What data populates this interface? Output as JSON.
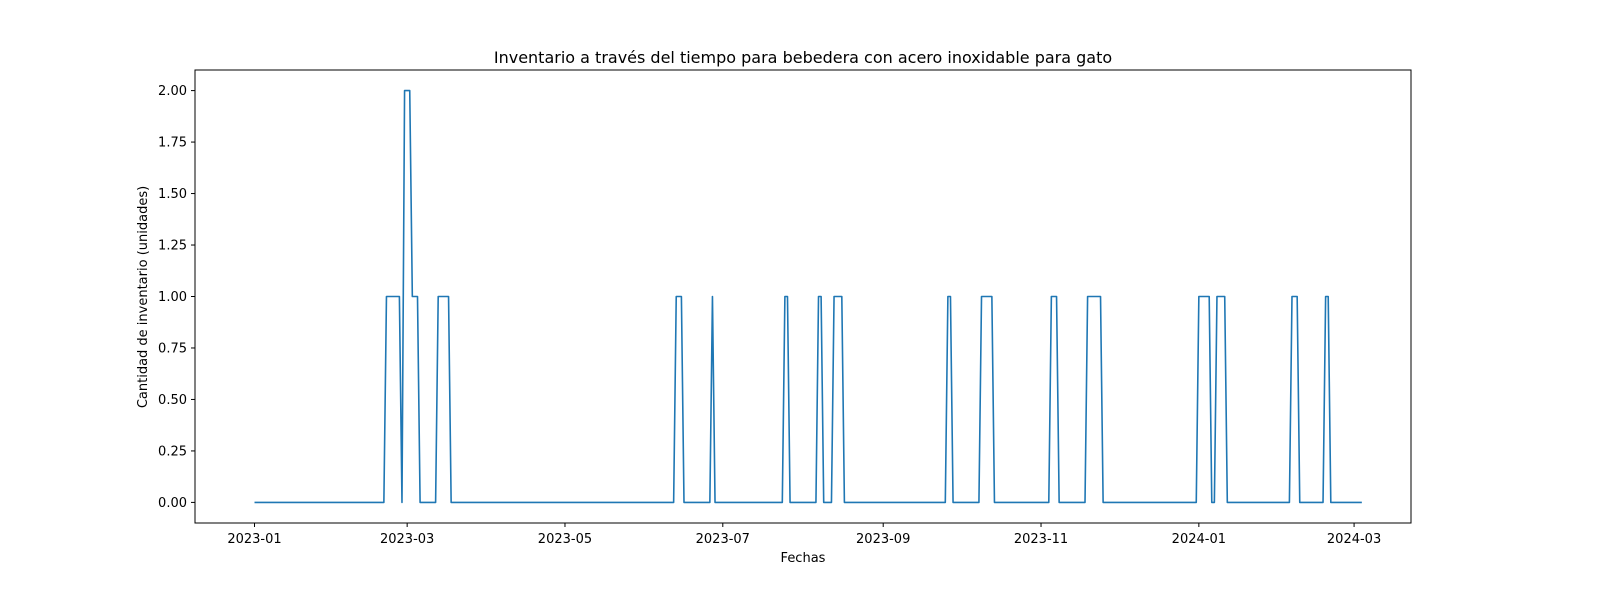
{
  "chart_data": {
    "type": "line",
    "title": "Inventario a través del tiempo para bebedera con acero inoxidable para gato",
    "xlabel": "Fechas",
    "ylabel": "Cantidad de inventario (unidades)",
    "x_ticks": [
      "2023-01",
      "2023-03",
      "2023-05",
      "2023-07",
      "2023-09",
      "2023-11",
      "2024-01",
      "2024-03"
    ],
    "y_ticks": [
      "0.00",
      "0.25",
      "0.50",
      "0.75",
      "1.00",
      "1.25",
      "1.50",
      "1.75",
      "2.00"
    ],
    "xlim": [
      "2022-12-09",
      "2024-03-23"
    ],
    "ylim": [
      -0.1,
      2.1
    ],
    "grid": false,
    "series": [
      {
        "color": "#1f77b4",
        "points": [
          [
            "2023-01-01",
            0
          ],
          [
            "2023-02-20",
            0
          ],
          [
            "2023-02-21",
            1
          ],
          [
            "2023-02-26",
            1
          ],
          [
            "2023-02-27",
            0
          ],
          [
            "2023-02-28",
            2
          ],
          [
            "2023-03-02",
            2
          ],
          [
            "2023-03-03",
            1
          ],
          [
            "2023-03-05",
            1
          ],
          [
            "2023-03-06",
            0
          ],
          [
            "2023-03-12",
            0
          ],
          [
            "2023-03-13",
            1
          ],
          [
            "2023-03-17",
            1
          ],
          [
            "2023-03-18",
            0
          ],
          [
            "2023-06-12",
            0
          ],
          [
            "2023-06-13",
            1
          ],
          [
            "2023-06-15",
            1
          ],
          [
            "2023-06-16",
            0
          ],
          [
            "2023-06-26",
            0
          ],
          [
            "2023-06-27",
            1
          ],
          [
            "2023-06-28",
            0
          ],
          [
            "2023-07-24",
            0
          ],
          [
            "2023-07-25",
            1
          ],
          [
            "2023-07-26",
            1
          ],
          [
            "2023-07-27",
            0
          ],
          [
            "2023-08-06",
            0
          ],
          [
            "2023-08-07",
            1
          ],
          [
            "2023-08-08",
            1
          ],
          [
            "2023-08-09",
            0
          ],
          [
            "2023-08-12",
            0
          ],
          [
            "2023-08-13",
            1
          ],
          [
            "2023-08-16",
            1
          ],
          [
            "2023-08-17",
            0
          ],
          [
            "2023-09-25",
            0
          ],
          [
            "2023-09-26",
            1
          ],
          [
            "2023-09-27",
            1
          ],
          [
            "2023-09-28",
            0
          ],
          [
            "2023-10-08",
            0
          ],
          [
            "2023-10-09",
            1
          ],
          [
            "2023-10-13",
            1
          ],
          [
            "2023-10-14",
            0
          ],
          [
            "2023-11-04",
            0
          ],
          [
            "2023-11-05",
            1
          ],
          [
            "2023-11-07",
            1
          ],
          [
            "2023-11-08",
            0
          ],
          [
            "2023-11-18",
            0
          ],
          [
            "2023-11-19",
            1
          ],
          [
            "2023-11-24",
            1
          ],
          [
            "2023-11-25",
            0
          ],
          [
            "2023-12-31",
            0
          ],
          [
            "2024-01-01",
            1
          ],
          [
            "2024-01-05",
            1
          ],
          [
            "2024-01-06",
            0
          ],
          [
            "2024-01-07",
            0
          ],
          [
            "2024-01-08",
            1
          ],
          [
            "2024-01-11",
            1
          ],
          [
            "2024-01-12",
            0
          ],
          [
            "2024-02-05",
            0
          ],
          [
            "2024-02-06",
            1
          ],
          [
            "2024-02-08",
            1
          ],
          [
            "2024-02-09",
            0
          ],
          [
            "2024-02-18",
            0
          ],
          [
            "2024-02-19",
            1
          ],
          [
            "2024-02-20",
            1
          ],
          [
            "2024-02-21",
            0
          ],
          [
            "2024-03-04",
            0
          ]
        ]
      }
    ]
  }
}
